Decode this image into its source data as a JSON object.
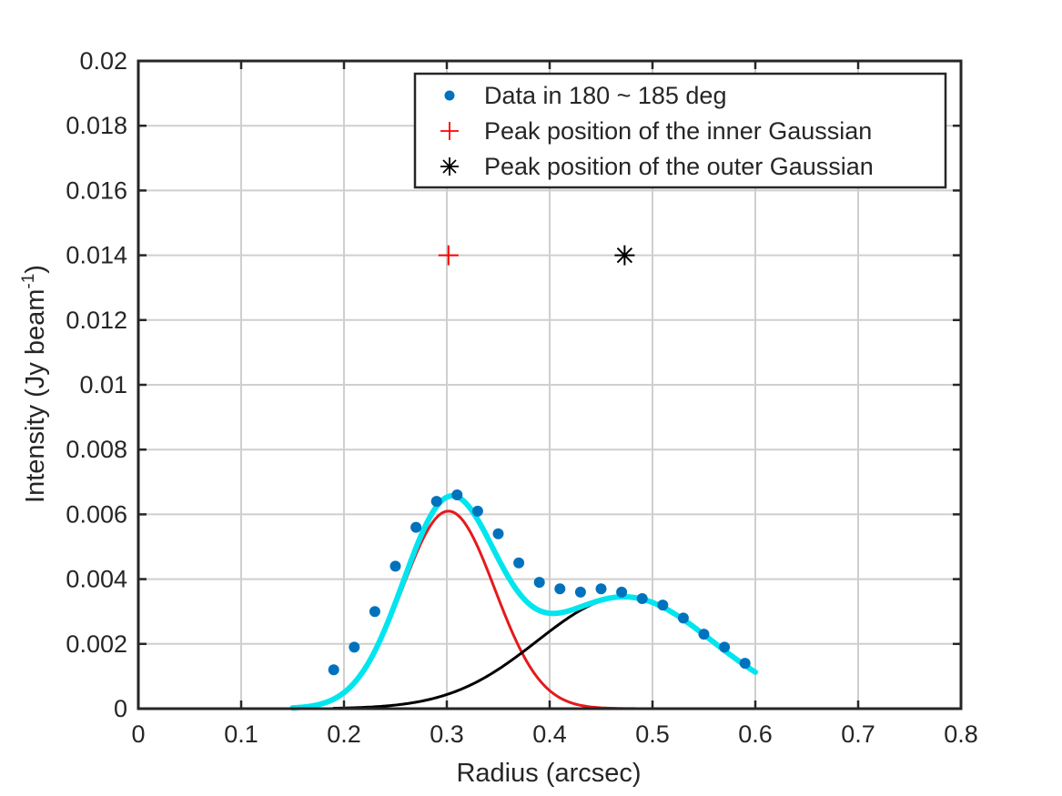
{
  "chart_data": {
    "type": "line",
    "title": "",
    "xlabel": "Radius (arcsec)",
    "ylabel": {
      "main": "Intensity (Jy beam",
      "superscript": "-1",
      "close": ")"
    },
    "xlim": [
      0,
      0.8
    ],
    "ylim": [
      0,
      0.02
    ],
    "x_ticks": [
      0,
      0.1,
      0.2,
      0.3,
      0.4,
      0.5,
      0.6,
      0.7,
      0.8
    ],
    "x_tick_labels": [
      "0",
      "0.1",
      "0.2",
      "0.3",
      "0.4",
      "0.5",
      "0.6",
      "0.7",
      "0.8"
    ],
    "y_ticks": [
      0,
      0.002,
      0.004,
      0.006,
      0.008,
      0.01,
      0.012,
      0.014,
      0.016,
      0.018,
      0.02
    ],
    "y_tick_labels": [
      "0",
      "0.002",
      "0.004",
      "0.006",
      "0.008",
      "0.01",
      "0.012",
      "0.014",
      "0.016",
      "0.018",
      "0.02"
    ],
    "grid": true,
    "legend_position": "top-right",
    "series": [
      {
        "name": "Data in 180 ~ 185 deg",
        "kind": "scatter",
        "marker": "dot",
        "color": "#0072BD",
        "x": [
          0.19,
          0.21,
          0.23,
          0.25,
          0.27,
          0.29,
          0.31,
          0.33,
          0.35,
          0.37,
          0.39,
          0.41,
          0.43,
          0.45,
          0.47,
          0.49,
          0.51,
          0.53,
          0.55,
          0.57,
          0.59
        ],
        "y": [
          0.0012,
          0.0019,
          0.003,
          0.0044,
          0.0056,
          0.0064,
          0.0066,
          0.0061,
          0.0054,
          0.0045,
          0.0039,
          0.0037,
          0.0036,
          0.0037,
          0.0036,
          0.0034,
          0.0032,
          0.0028,
          0.0023,
          0.0019,
          0.0014
        ]
      },
      {
        "name": "Peak position of the inner Gaussian",
        "kind": "marker",
        "marker": "plus",
        "color": "#ff0000",
        "x": [
          0.3016
        ],
        "y": [
          0.014
        ]
      },
      {
        "name": "Peak position of the outer Gaussian",
        "kind": "marker",
        "marker": "asterisk",
        "color": "#000000",
        "x": [
          0.4729
        ],
        "y": [
          0.014
        ]
      },
      {
        "kind": "curve",
        "color": "#e41a1c",
        "model": {
          "amplitude": 0.0061,
          "center": 0.3016,
          "sigma": 0.045
        },
        "x_range": [
          0.19,
          0.59
        ]
      },
      {
        "kind": "curve",
        "color": "#000000",
        "model": {
          "amplitude": 0.00345,
          "center": 0.4729,
          "sigma": 0.085
        },
        "x_range": [
          0.19,
          0.59
        ]
      },
      {
        "kind": "curve",
        "color": "#00e5ee",
        "model": "sum",
        "x_range": [
          0.15,
          0.6
        ]
      }
    ]
  }
}
